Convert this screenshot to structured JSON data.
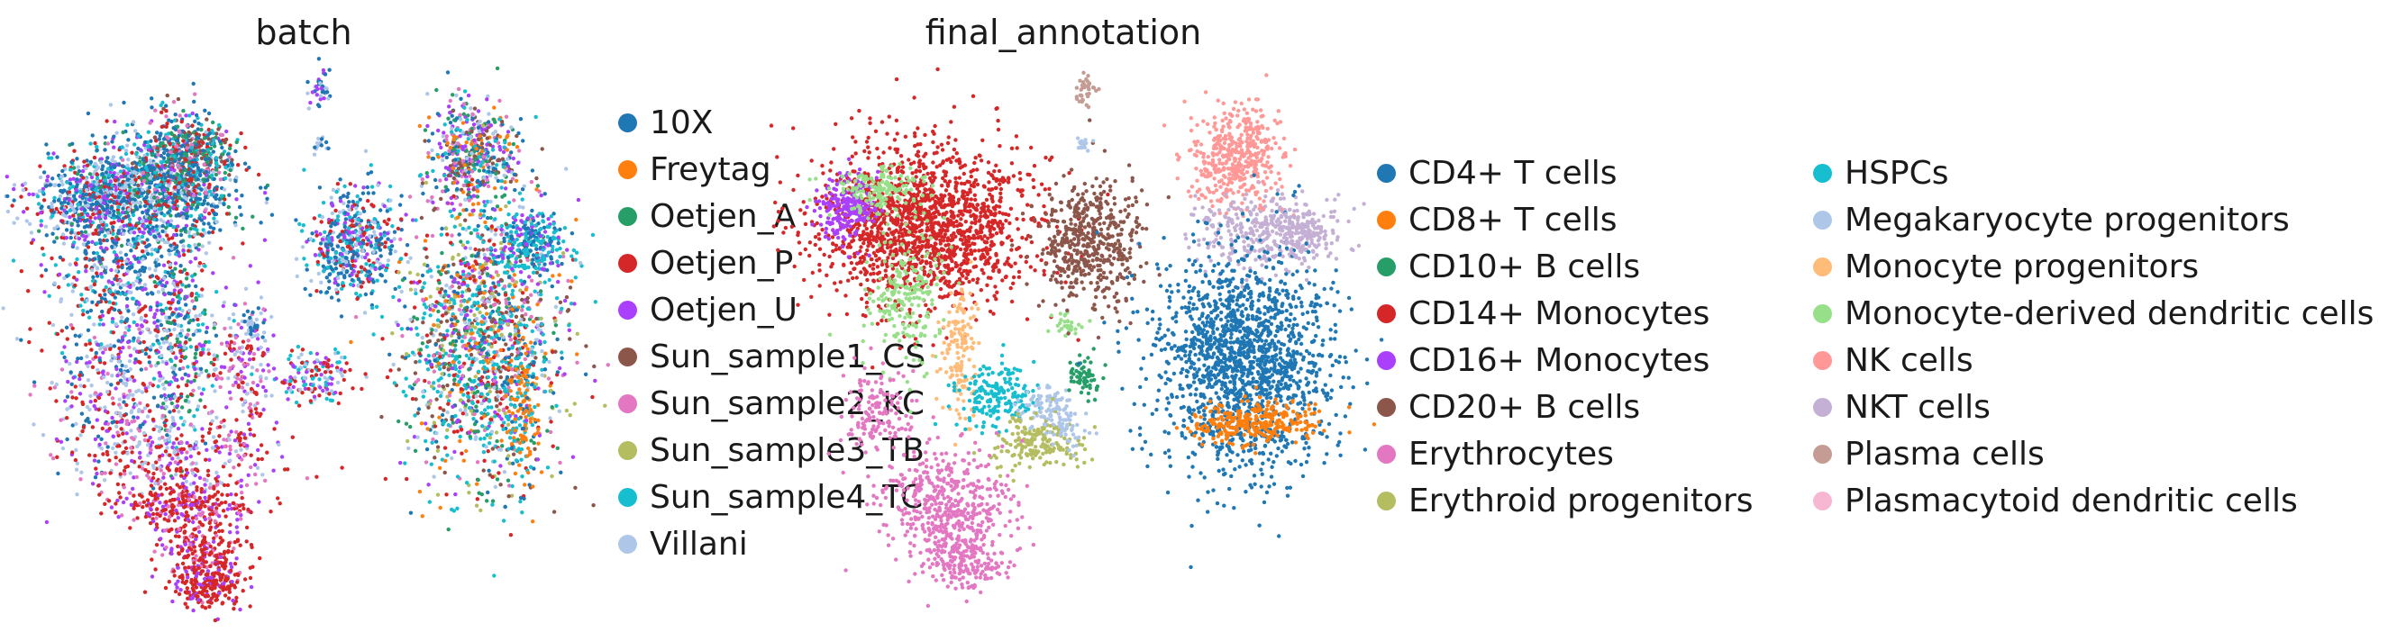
{
  "chart_data": [
    {
      "type": "scatter",
      "title": "batch",
      "legend_placement": "right",
      "grid": false,
      "axes_visible": false,
      "series": [
        {
          "name": "10X",
          "color": "#1f77b4"
        },
        {
          "name": "Freytag",
          "color": "#ff7f0e"
        },
        {
          "name": "Oetjen_A",
          "color": "#279e68"
        },
        {
          "name": "Oetjen_P",
          "color": "#d62728"
        },
        {
          "name": "Oetjen_U",
          "color": "#aa40fc"
        },
        {
          "name": "Sun_sample1_CS",
          "color": "#8c564b"
        },
        {
          "name": "Sun_sample2_KC",
          "color": "#e377c2"
        },
        {
          "name": "Sun_sample3_TB",
          "color": "#b5bd61"
        },
        {
          "name": "Sun_sample4_TC",
          "color": "#17becf"
        },
        {
          "name": "Villani",
          "color": "#aec7e8"
        }
      ]
    },
    {
      "type": "scatter",
      "title": "final_annotation",
      "legend_placement": "right",
      "grid": false,
      "axes_visible": false,
      "series": [
        {
          "name": "CD4+ T cells",
          "color": "#1f77b4"
        },
        {
          "name": "CD8+ T cells",
          "color": "#ff7f0e"
        },
        {
          "name": "CD10+ B cells",
          "color": "#279e68"
        },
        {
          "name": "CD14+ Monocytes",
          "color": "#d62728"
        },
        {
          "name": "CD16+ Monocytes",
          "color": "#aa40fc"
        },
        {
          "name": "CD20+ B cells",
          "color": "#8c564b"
        },
        {
          "name": "Erythrocytes",
          "color": "#e377c2"
        },
        {
          "name": "Erythroid progenitors",
          "color": "#b5bd61"
        },
        {
          "name": "HSPCs",
          "color": "#17becf"
        },
        {
          "name": "Megakaryocyte progenitors",
          "color": "#aec7e8"
        },
        {
          "name": "Monocyte progenitors",
          "color": "#ffbb78"
        },
        {
          "name": "Monocyte-derived dendritic cells",
          "color": "#98df8a"
        },
        {
          "name": "NK cells",
          "color": "#ff9896"
        },
        {
          "name": "NKT cells",
          "color": "#c5b0d5"
        },
        {
          "name": "Plasma cells",
          "color": "#c49c94"
        },
        {
          "name": "Plasmacytoid dendritic cells",
          "color": "#f7b6d2"
        }
      ]
    }
  ]
}
